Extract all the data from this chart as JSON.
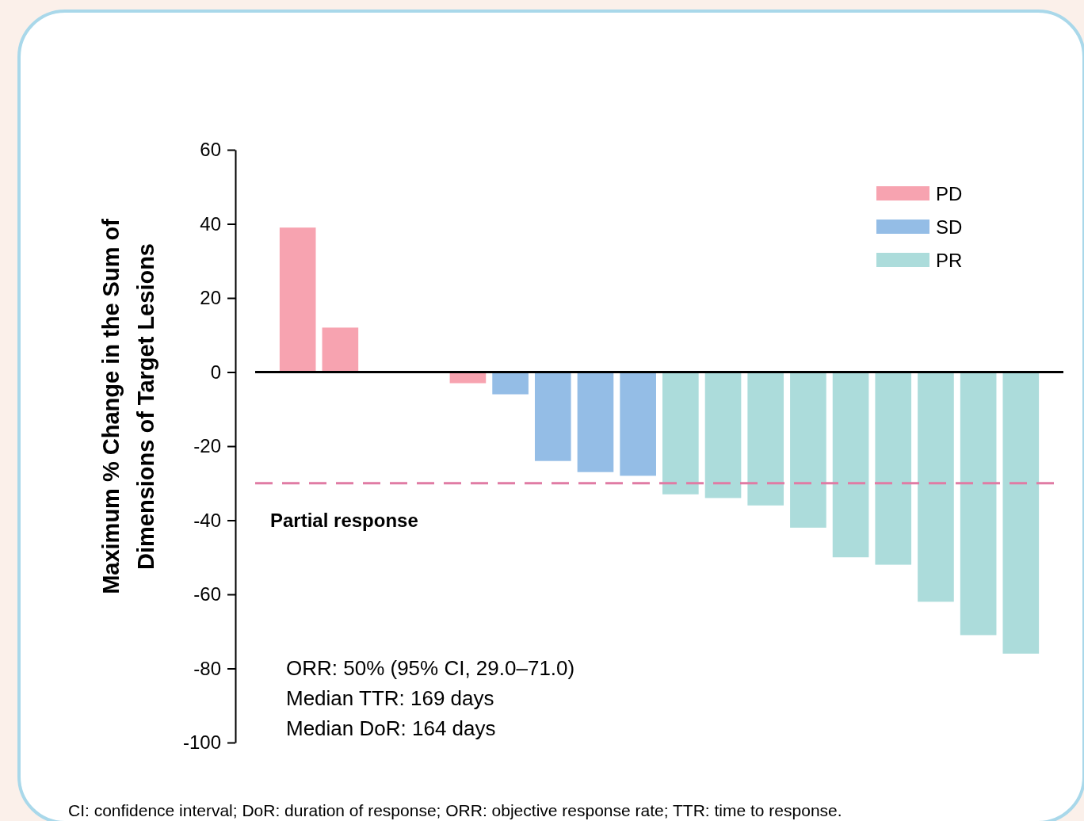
{
  "chart_data": {
    "type": "bar",
    "ylabel": "Maximum % Change in the Sum of\nDimensions of Target Lesions",
    "categories": [
      null,
      null,
      null,
      null,
      null,
      null,
      null,
      null,
      null,
      null,
      null,
      null,
      null,
      null,
      null,
      null,
      null,
      null
    ],
    "series": [
      {
        "name": "PD",
        "color": "#f7a3b0",
        "values": [
          39,
          12,
          null,
          null,
          -3,
          null,
          null,
          null,
          null,
          null,
          null,
          null,
          null,
          null,
          null,
          null,
          null,
          null
        ]
      },
      {
        "name": "SD",
        "color": "#94bde6",
        "values": [
          null,
          null,
          null,
          null,
          null,
          -6,
          -24,
          -27,
          -28,
          null,
          null,
          null,
          null,
          null,
          null,
          null,
          null,
          null
        ]
      },
      {
        "name": "PR",
        "color": "#acdcdb",
        "values": [
          null,
          null,
          null,
          null,
          null,
          null,
          null,
          null,
          null,
          -33,
          -34,
          -36,
          -42,
          -50,
          -52,
          -62,
          -71,
          -76
        ]
      }
    ],
    "ylim": [
      -100,
      60
    ],
    "yticks": [
      -100,
      -80,
      -60,
      -40,
      -20,
      0,
      20,
      40,
      60
    ],
    "ref_lines": [
      {
        "axis": "y",
        "value": -30,
        "label": "Partial response",
        "color": "#e07ba4",
        "line_style": "dashed"
      }
    ],
    "legend": "top right",
    "annotations": [
      "ORR: 50% (95% CI, 29.0–71.0)",
      "Median TTR: 169 days",
      "Median DoR: 164 days",
      "CI: confidence interval; DoR: duration of response; ORR: objective response rate; TTR: time to response."
    ]
  }
}
